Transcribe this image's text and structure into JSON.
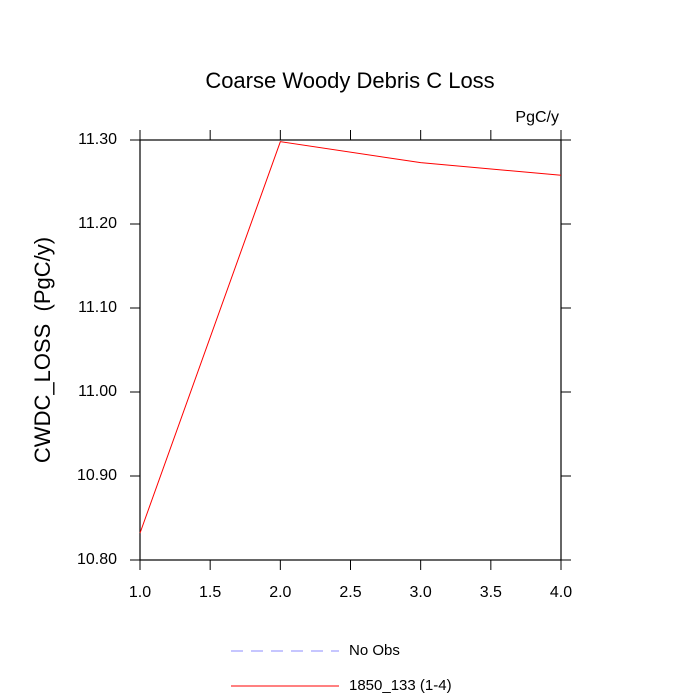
{
  "chart_data": {
    "type": "line",
    "title": "Coarse Woody Debris C Loss",
    "units": "PgC/y",
    "ylabel": "CWDC_LOSS  (PgC/y)",
    "x": [
      1,
      2,
      3,
      4
    ],
    "series": [
      {
        "name": "No Obs",
        "color": "#8c8cff",
        "dashed": true,
        "values": [
          null,
          null,
          null,
          null
        ]
      },
      {
        "name": "1850_133 (1-4)",
        "color": "#ff0000",
        "dashed": false,
        "values": [
          10.832,
          11.298,
          11.273,
          11.258
        ]
      }
    ],
    "xlim": [
      1,
      4
    ],
    "xticks": [
      {
        "value": 1,
        "label": "1.0"
      },
      {
        "value": 1.5,
        "label": "1.5"
      },
      {
        "value": 2,
        "label": "2.0"
      },
      {
        "value": 2.5,
        "label": "2.5"
      },
      {
        "value": 3,
        "label": "3.0"
      },
      {
        "value": 3.5,
        "label": "3.5"
      },
      {
        "value": 4,
        "label": "4.0"
      }
    ],
    "ylim": [
      10.8,
      11.3
    ],
    "yticks": [
      {
        "value": 10.8,
        "label": "10.80"
      },
      {
        "value": 10.9,
        "label": "10.90"
      },
      {
        "value": 11,
        "label": "11.00"
      },
      {
        "value": 11.1,
        "label": "11.10"
      },
      {
        "value": 11.2,
        "label": "11.20"
      },
      {
        "value": 11.3,
        "label": "11.30"
      }
    ],
    "grid": false
  }
}
